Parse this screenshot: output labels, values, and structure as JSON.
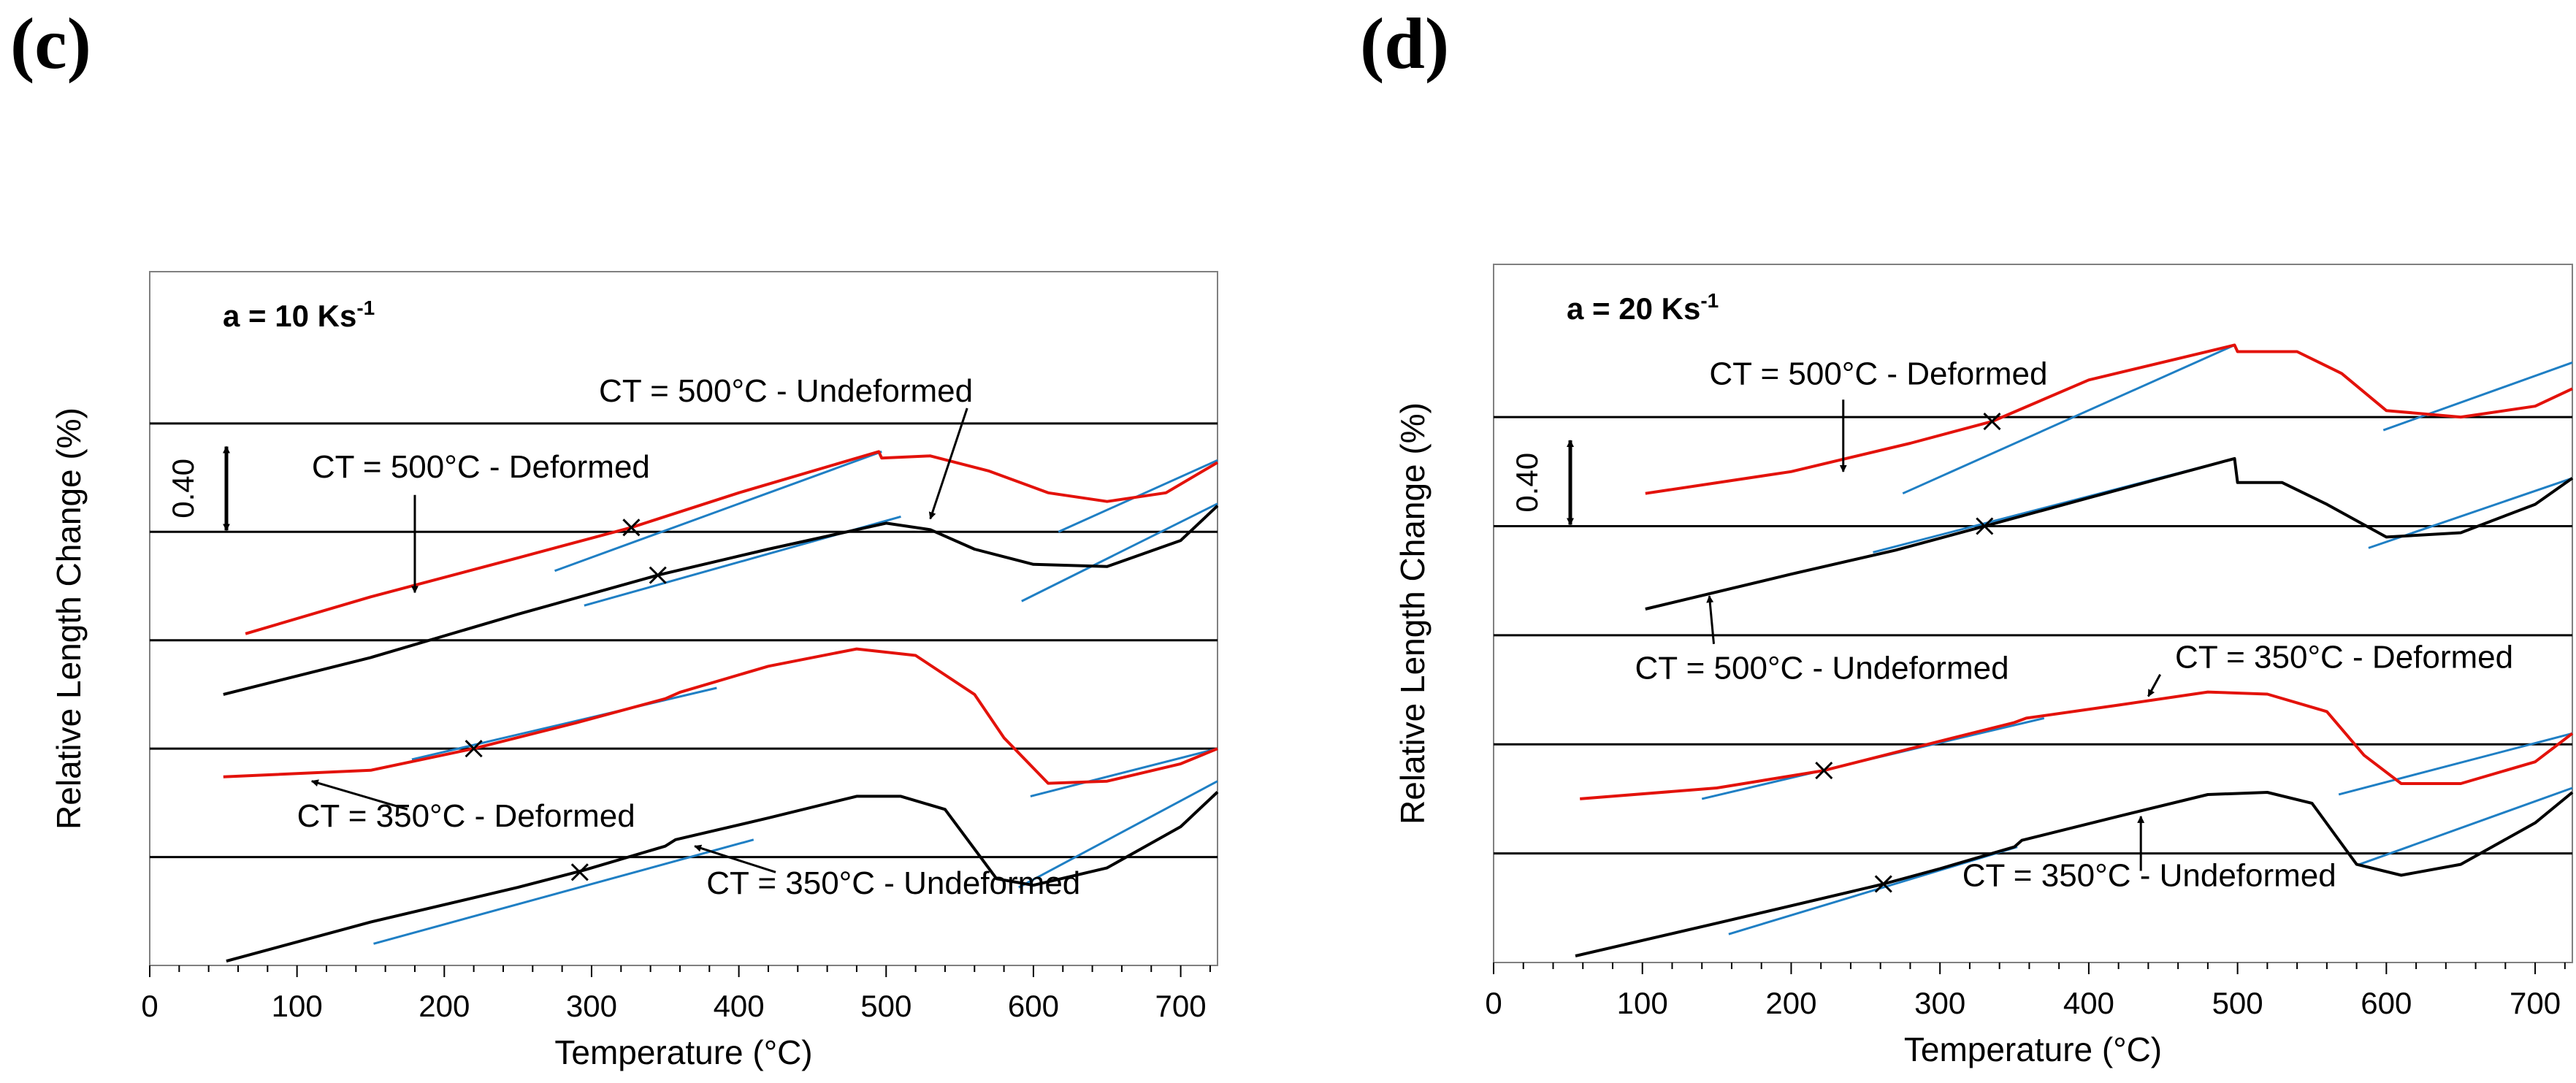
{
  "panels": {
    "c": {
      "label": "(c)"
    },
    "d": {
      "label": "(d)"
    }
  },
  "chart_data": [
    {
      "type": "line",
      "panel": "(c)",
      "annotation": "a = 10 Ks",
      "annotation_sup": "-1",
      "xlabel": "Temperature (°C)",
      "ylabel": "Relative Length Change (%)",
      "xlim": [
        0,
        725
      ],
      "ylim": [
        0,
        3.2
      ],
      "xticks": [
        0,
        100,
        200,
        300,
        400,
        500,
        600,
        700
      ],
      "scale_bar": {
        "label": "0.40",
        "y_from": 2.0,
        "y_to": 2.4
      },
      "baselines": [
        0.5,
        1.0,
        1.5,
        2.0,
        2.5
      ],
      "series": [
        {
          "name": "CT = 500°C - Deformed",
          "color": "#e3120b",
          "x": [
            65,
            150,
            250,
            327,
            400,
            495,
            497,
            530,
            570,
            610,
            650,
            690,
            725
          ],
          "y": [
            1.53,
            1.7,
            1.88,
            2.02,
            2.18,
            2.37,
            2.34,
            2.35,
            2.28,
            2.18,
            2.14,
            2.18,
            2.32
          ]
        },
        {
          "name": "CT = 500°C - Undeformed",
          "color": "#000000",
          "x": [
            50,
            150,
            250,
            345,
            420,
            500,
            530,
            560,
            600,
            650,
            700,
            725
          ],
          "y": [
            1.25,
            1.42,
            1.62,
            1.8,
            1.92,
            2.04,
            2.01,
            1.92,
            1.85,
            1.84,
            1.96,
            2.12
          ]
        },
        {
          "name": "CT = 350°C - Deformed",
          "color": "#e3120b",
          "x": [
            50,
            150,
            220,
            290,
            350,
            360,
            420,
            480,
            520,
            560,
            580,
            610,
            650,
            700,
            725
          ],
          "y": [
            0.87,
            0.9,
            1.0,
            1.12,
            1.23,
            1.26,
            1.38,
            1.46,
            1.43,
            1.25,
            1.05,
            0.84,
            0.85,
            0.93,
            1.0
          ]
        },
        {
          "name": "CT = 350°C - Undeformed",
          "color": "#000000",
          "x": [
            52,
            150,
            250,
            295,
            350,
            357,
            420,
            480,
            510,
            540,
            575,
            600,
            650,
            700,
            725
          ],
          "y": [
            0.02,
            0.2,
            0.36,
            0.44,
            0.55,
            0.58,
            0.68,
            0.78,
            0.78,
            0.72,
            0.4,
            0.37,
            0.45,
            0.64,
            0.8
          ]
        }
      ],
      "tangent_lines": [
        {
          "x": [
            275,
            497
          ],
          "y": [
            1.82,
            2.37
          ]
        },
        {
          "x": [
            295,
            510
          ],
          "y": [
            1.66,
            2.07
          ]
        },
        {
          "x": [
            178,
            385
          ],
          "y": [
            0.95,
            1.28
          ]
        },
        {
          "x": [
            152,
            410
          ],
          "y": [
            0.1,
            0.58
          ]
        },
        {
          "x": [
            617,
            725
          ],
          "y": [
            2.0,
            2.33
          ]
        },
        {
          "x": [
            592,
            725
          ],
          "y": [
            1.68,
            2.13
          ]
        },
        {
          "x": [
            598,
            725
          ],
          "y": [
            0.78,
            1.0
          ]
        },
        {
          "x": [
            590,
            725
          ],
          "y": [
            0.36,
            0.85
          ]
        }
      ],
      "markers": [
        {
          "x": 327,
          "y": 2.02
        },
        {
          "x": 345,
          "y": 1.8
        },
        {
          "x": 220,
          "y": 1.0
        },
        {
          "x": 292,
          "y": 0.43
        }
      ],
      "annotations": [
        {
          "text": "CT = 500°C - Undeformed",
          "tx": 305,
          "ty": 2.6,
          "ax1": 555,
          "ay1": 2.57,
          "ax2": 530,
          "ay2": 2.06
        },
        {
          "text": "CT = 500°C - Deformed",
          "tx": 110,
          "ty": 2.25,
          "ax1": 180,
          "ay1": 2.17,
          "ax2": 180,
          "ay2": 1.72
        },
        {
          "text": "CT = 350°C - Deformed",
          "tx": 100,
          "ty": 0.64,
          "ax1": 175,
          "ay1": 0.72,
          "ax2": 110,
          "ay2": 0.85
        },
        {
          "text": "CT = 350°C - Undeformed",
          "tx": 378,
          "ty": 0.33,
          "ax1": 425,
          "ay1": 0.43,
          "ax2": 370,
          "ay2": 0.55
        }
      ]
    },
    {
      "type": "line",
      "panel": "(d)",
      "annotation": "a = 20 Ks",
      "annotation_sup": "-1",
      "xlabel": "Temperature (°C)",
      "ylabel": "Relative Length Change (%)",
      "xlim": [
        0,
        725
      ],
      "ylim": [
        0,
        3.2
      ],
      "xticks": [
        0,
        100,
        200,
        300,
        400,
        500,
        600,
        700
      ],
      "scale_bar": {
        "label": "0.40",
        "y_from": 2.0,
        "y_to": 2.4
      },
      "baselines": [
        0.5,
        1.0,
        1.5,
        2.0,
        2.5
      ],
      "series": [
        {
          "name": "CT = 500°C - Deformed",
          "color": "#e3120b",
          "x": [
            102,
            200,
            280,
            335,
            400,
            498,
            500,
            540,
            570,
            600,
            650,
            700,
            725
          ],
          "y": [
            2.15,
            2.25,
            2.38,
            2.48,
            2.67,
            2.83,
            2.8,
            2.8,
            2.7,
            2.53,
            2.5,
            2.55,
            2.63
          ]
        },
        {
          "name": "CT = 500°C - Undeformed",
          "color": "#000000",
          "x": [
            102,
            200,
            270,
            330,
            400,
            498,
            500,
            530,
            560,
            600,
            650,
            700,
            725
          ],
          "y": [
            1.62,
            1.78,
            1.89,
            2.0,
            2.13,
            2.31,
            2.2,
            2.2,
            2.1,
            1.95,
            1.97,
            2.1,
            2.22
          ]
        },
        {
          "name": "CT = 350°C - Deformed",
          "color": "#e3120b",
          "x": [
            58,
            150,
            222,
            280,
            350,
            358,
            420,
            480,
            520,
            560,
            585,
            610,
            650,
            700,
            725
          ],
          "y": [
            0.75,
            0.8,
            0.88,
            0.98,
            1.1,
            1.12,
            1.18,
            1.24,
            1.23,
            1.15,
            0.95,
            0.82,
            0.82,
            0.92,
            1.05
          ]
        },
        {
          "name": "CT = 350°C - Undeformed",
          "color": "#000000",
          "x": [
            55,
            150,
            262,
            300,
            350,
            355,
            420,
            480,
            520,
            550,
            580,
            610,
            650,
            700,
            725
          ],
          "y": [
            0.03,
            0.18,
            0.36,
            0.43,
            0.53,
            0.56,
            0.67,
            0.77,
            0.78,
            0.73,
            0.45,
            0.4,
            0.45,
            0.64,
            0.78
          ]
        }
      ],
      "tangent_lines": [
        {
          "x": [
            275,
            498
          ],
          "y": [
            2.15,
            2.83
          ]
        },
        {
          "x": [
            255,
            498
          ],
          "y": [
            1.88,
            2.31
          ]
        },
        {
          "x": [
            140,
            370
          ],
          "y": [
            0.75,
            1.12
          ]
        },
        {
          "x": [
            158,
            352
          ],
          "y": [
            0.13,
            0.53
          ]
        },
        {
          "x": [
            598,
            725
          ],
          "y": [
            2.44,
            2.75
          ]
        },
        {
          "x": [
            588,
            725
          ],
          "y": [
            1.9,
            2.22
          ]
        },
        {
          "x": [
            568,
            725
          ],
          "y": [
            0.77,
            1.05
          ]
        },
        {
          "x": [
            582,
            725
          ],
          "y": [
            0.45,
            0.8
          ]
        }
      ],
      "markers": [
        {
          "x": 335,
          "y": 2.48
        },
        {
          "x": 330,
          "y": 2.0
        },
        {
          "x": 222,
          "y": 0.88
        },
        {
          "x": 262,
          "y": 0.36
        }
      ],
      "annotations": [
        {
          "text": "CT = 500°C - Deformed",
          "tx": 145,
          "ty": 2.65,
          "ax1": 235,
          "ay1": 2.58,
          "ax2": 235,
          "ay2": 2.25
        },
        {
          "text": "CT = 500°C - Undeformed",
          "tx": 95,
          "ty": 1.3,
          "ax1": 148,
          "ay1": 1.46,
          "ax2": 145,
          "ay2": 1.68
        },
        {
          "text": "CT = 350°C - Deformed",
          "tx": 458,
          "ty": 1.35,
          "ax1": 448,
          "ay1": 1.32,
          "ax2": 440,
          "ay2": 1.22
        },
        {
          "text": "CT = 350°C - Undeformed",
          "tx": 315,
          "ty": 0.35,
          "ax1": 435,
          "ay1": 0.42,
          "ax2": 435,
          "ay2": 0.67
        }
      ]
    }
  ]
}
